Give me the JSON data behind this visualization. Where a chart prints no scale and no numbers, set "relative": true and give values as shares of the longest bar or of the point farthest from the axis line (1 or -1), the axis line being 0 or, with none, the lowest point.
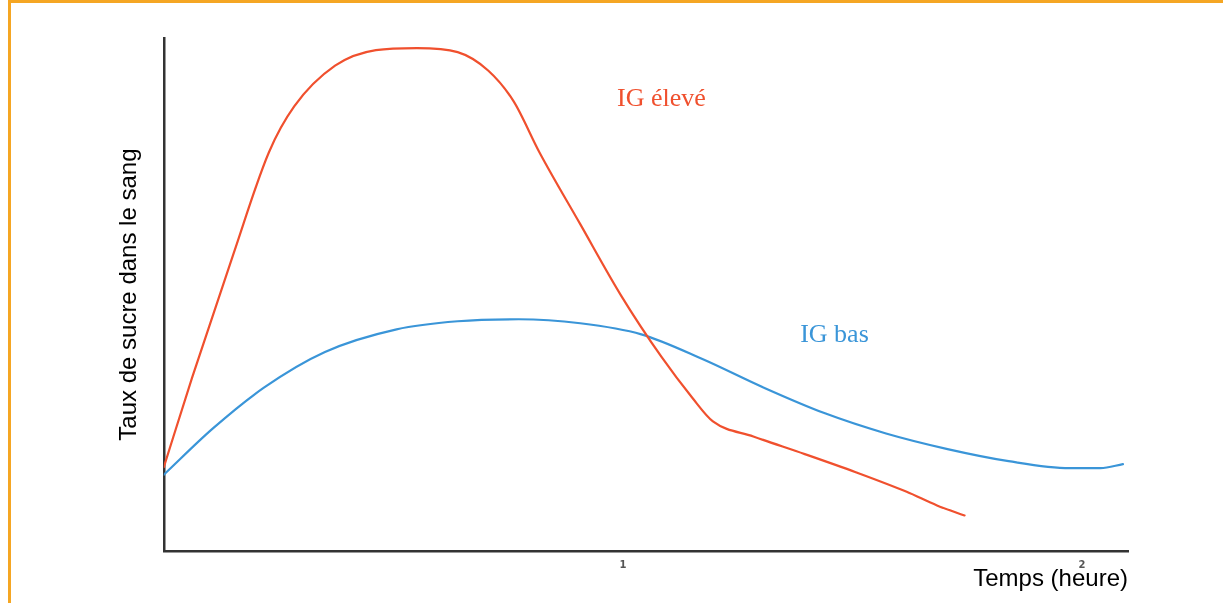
{
  "chart_data": {
    "type": "line",
    "xlabel": "Temps (heure)",
    "ylabel": "Taux de sucre dans le sang",
    "relative": true,
    "xlim": [
      0,
      2.1
    ],
    "xticks": [
      1,
      2
    ],
    "grid": false,
    "legend": false,
    "marker": "none",
    "line_style": "solid",
    "series": [
      {
        "name": "IG élevé",
        "color": "#f0502e",
        "x": [
          0,
          0.062,
          0.151,
          0.229,
          0.284,
          0.373,
          0.462,
          0.551,
          0.64,
          0.707,
          0.762,
          0.818,
          0.907,
          0.996,
          1.084,
          1.151,
          1.196,
          1.284,
          1.396,
          1.507,
          1.618,
          1.684,
          1.744
        ],
        "values": [
          0.167,
          0.346,
          0.589,
          0.793,
          0.884,
          0.965,
          0.996,
          1,
          0.992,
          0.955,
          0.894,
          0.793,
          0.65,
          0.508,
          0.386,
          0.305,
          0.258,
          0.228,
          0.193,
          0.157,
          0.118,
          0.091,
          0.071
        ]
      },
      {
        "name": "IG bas",
        "color": "#3a95d8",
        "x": [
          0,
          0.107,
          0.218,
          0.351,
          0.507,
          0.64,
          0.773,
          0.907,
          1.04,
          1.173,
          1.307,
          1.44,
          1.573,
          1.707,
          1.84,
          1.973,
          2.04,
          2.089
        ],
        "values": [
          0.152,
          0.244,
          0.325,
          0.396,
          0.441,
          0.457,
          0.461,
          0.453,
          0.431,
          0.382,
          0.325,
          0.274,
          0.234,
          0.203,
          0.179,
          0.165,
          0.165,
          0.173
        ]
      }
    ]
  }
}
